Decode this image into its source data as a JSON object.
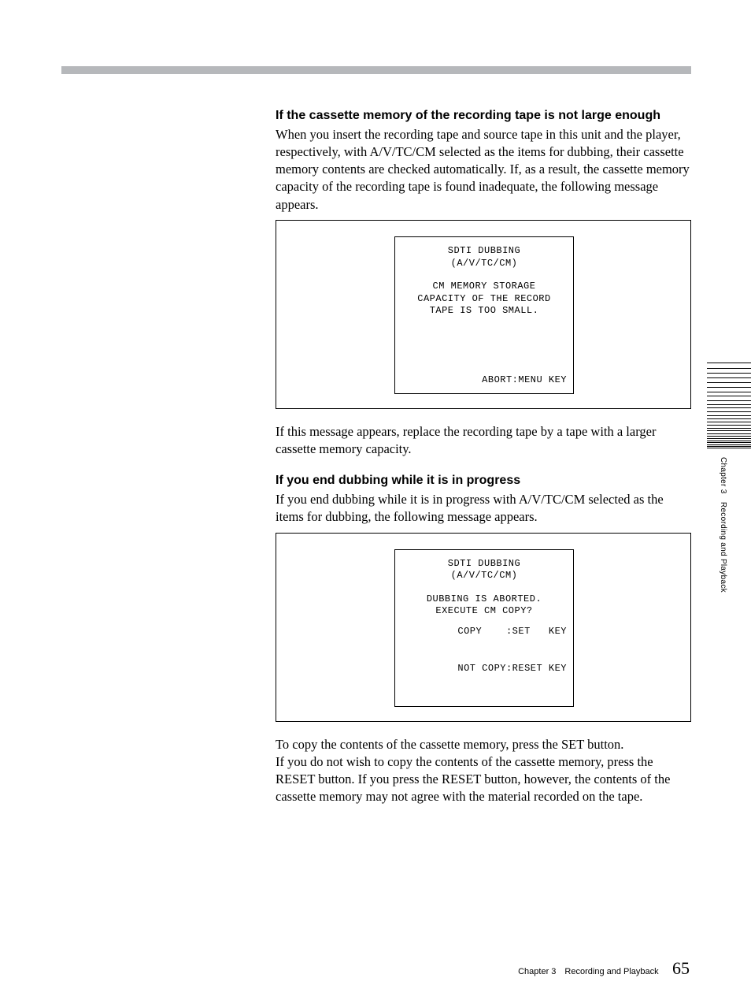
{
  "topbar_color": "#b6b8bb",
  "s1": {
    "heading": "If the cassette memory of the recording tape is not large enough",
    "para": "When you insert the recording tape and source tape in this unit and the player, respectively, with A/V/TC/CM selected as the items for dubbing, their cassette memory contents are checked automatically. If, as a result, the cassette memory capacity of the recording tape is found inadequate, the following message appears.",
    "screen": {
      "title1": "SDTI DUBBING",
      "title2": "(A/V/TC/CM)",
      "line1": "CM MEMORY STORAGE",
      "line2": "CAPACITY OF THE RECORD",
      "line3": "TAPE IS TOO SMALL.",
      "bottom": "ABORT:MENU KEY"
    },
    "after": "If this message appears, replace the recording tape by a tape with a larger cassette memory capacity."
  },
  "s2": {
    "heading": "If you end dubbing while it is in progress",
    "para": "If you end dubbing while it is in progress with A/V/TC/CM selected as the items for dubbing, the following message appears.",
    "screen": {
      "title1": "SDTI DUBBING",
      "title2": "(A/V/TC/CM)",
      "line1": "DUBBING IS ABORTED.",
      "line2": "EXECUTE CM COPY?",
      "bottom1": "COPY    :SET   KEY",
      "bottom2": "NOT COPY:RESET KEY"
    },
    "after": "To copy the contents of the cassette memory, press the SET button.\nIf you do not wish to copy the contents of the cassette memory, press the RESET button. If you press the RESET button, however, the contents of the cassette memory may not agree with the material recorded on the tape."
  },
  "sidetab": "Chapter 3 Recording and Playback",
  "footer_chapter": "Chapter 3 Recording and Playback",
  "footer_page": "65"
}
